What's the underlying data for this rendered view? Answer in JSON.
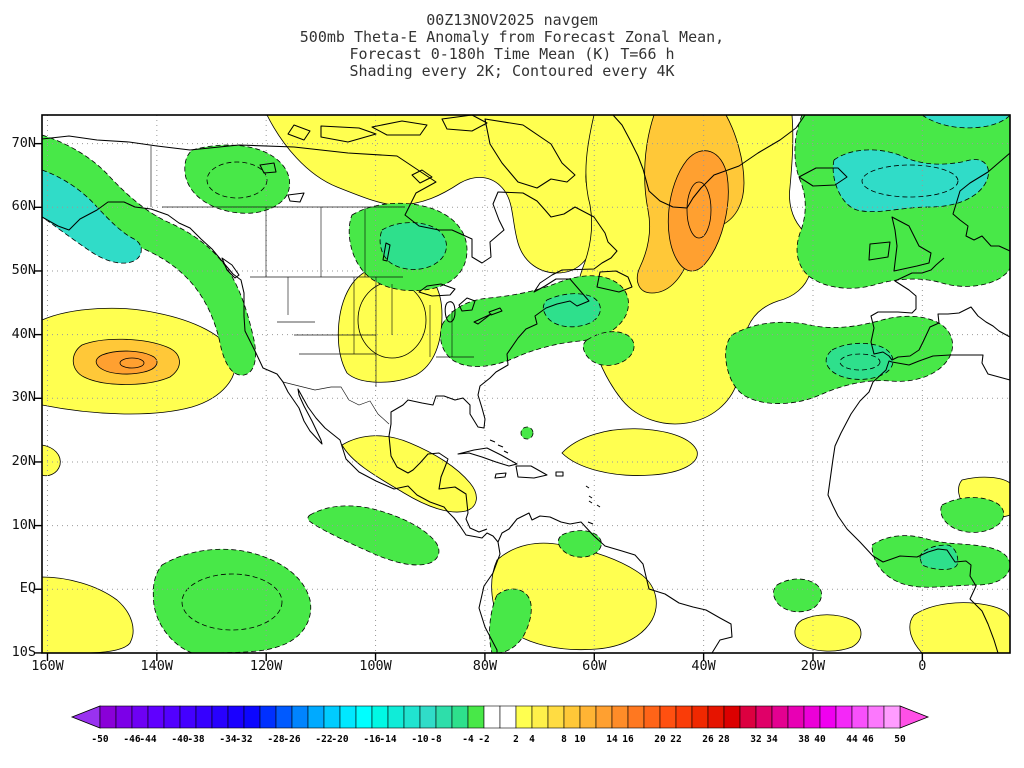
{
  "title": {
    "line1": "00Z13NOV2025 navgem",
    "line2": "500mb Theta-E Anomaly from Forecast Zonal Mean,",
    "line3": "Forecast 0-180h Time Mean (K) T=66 h",
    "line4": "Shading every 2K; Contoured every 4K"
  },
  "axes": {
    "lat_labels": [
      {
        "label": "70N",
        "lat": 70
      },
      {
        "label": "60N",
        "lat": 60
      },
      {
        "label": "50N",
        "lat": 50
      },
      {
        "label": "40N",
        "lat": 40
      },
      {
        "label": "30N",
        "lat": 30
      },
      {
        "label": "20N",
        "lat": 20
      },
      {
        "label": "10N",
        "lat": 10
      },
      {
        "label": "EQ",
        "lat": 0
      },
      {
        "label": "10S",
        "lat": -10
      }
    ],
    "lon_labels": [
      {
        "label": "160W",
        "lon": -160
      },
      {
        "label": "140W",
        "lon": -140
      },
      {
        "label": "120W",
        "lon": -120
      },
      {
        "label": "100W",
        "lon": -100
      },
      {
        "label": "80W",
        "lon": -80
      },
      {
        "label": "60W",
        "lon": -60
      },
      {
        "label": "40W",
        "lon": -40
      },
      {
        "label": "20W",
        "lon": -20
      },
      {
        "label": "0",
        "lon": 0
      }
    ]
  },
  "colorbar": {
    "min": -50,
    "max": 50,
    "step": 2,
    "labeled_values": [
      -50,
      -46,
      -44,
      -40,
      -38,
      -34,
      -32,
      -28,
      -26,
      -22,
      -20,
      -16,
      -14,
      -10,
      -8,
      -4,
      -2,
      2,
      4,
      8,
      10,
      14,
      16,
      20,
      22,
      26,
      28,
      32,
      34,
      38,
      40,
      44,
      46,
      50
    ],
    "left_arrow_color": "#9932F0",
    "right_arrow_color": "#FF50E6",
    "colors": [
      "#8A00D8",
      "#7C00E8",
      "#6E00F4",
      "#6000FF",
      "#5200FF",
      "#4400FF",
      "#3600FF",
      "#2800FF",
      "#1A00FF",
      "#0C06FF",
      "#0030FF",
      "#005AFF",
      "#0084FF",
      "#00AAFF",
      "#00CCFF",
      "#00E8FF",
      "#00FFFF",
      "#00F8E4",
      "#10ECD8",
      "#20E4D0",
      "#30DCC8",
      "#2EDEAA",
      "#2EE08C",
      "#48E848",
      "#FFFFFF",
      "#FFFFFF",
      "#FFFF50",
      "#FFF04A",
      "#FFDC42",
      "#FFC838",
      "#FFB434",
      "#FFA030",
      "#FF8C28",
      "#FF7820",
      "#FF6418",
      "#FF5010",
      "#FA3C08",
      "#F02800",
      "#E61400",
      "#DC0000",
      "#DC0040",
      "#E00068",
      "#E40090",
      "#E800B4",
      "#EC00D8",
      "#F000F0",
      "#F428F8",
      "#F850FB",
      "#FC78FD",
      "#FF9CFF"
    ]
  },
  "map_shades": {
    "yellow": "#FFFF50",
    "orange_light": "#FFC838",
    "orange": "#FFA030",
    "green": "#48E848",
    "spring_green": "#2EE08C",
    "cyan": "#30DCC8"
  },
  "chart_data": {
    "type": "heatmap",
    "subtype": "filled-contour-map",
    "model": "navgem",
    "init_time": "00Z13NOV2025",
    "field": "500mb Theta-E Anomaly from Forecast Zonal Mean",
    "time_mean": "Forecast 0-180h Time Mean (K)",
    "valid": "T=66 h",
    "units": "K",
    "shading_interval_K": 2,
    "contour_interval_K": 4,
    "lat_range": [
      "10S",
      "74N"
    ],
    "lon_range": [
      "160W",
      "16E"
    ],
    "colorbar_range": [
      -50,
      50
    ],
    "anomaly_regions": [
      {
        "sign": "positive",
        "location": "Northeast Pacific near 35N 145W",
        "approx_peak_K": 10
      },
      {
        "sign": "positive",
        "location": "Central North America 35-50N",
        "approx_peak_K": 6
      },
      {
        "sign": "positive",
        "location": "Northern Canada / Greenland / Labrador Sea / North Atlantic",
        "approx_peak_K": 14
      },
      {
        "sign": "positive",
        "location": "Subtropical west Atlantic 18-28N",
        "approx_peak_K": 4
      },
      {
        "sign": "positive",
        "location": "Mexico and Central America",
        "approx_peak_K": 4
      },
      {
        "sign": "positive",
        "location": "Tropical South America / Amazon",
        "approx_peak_K": 4
      },
      {
        "sign": "positive",
        "location": "Gulf of Guinea / tropical south Atlantic",
        "approx_peak_K": 4
      },
      {
        "sign": "negative",
        "location": "Gulf of Alaska / northeast Pacific",
        "approx_peak_K": -10
      },
      {
        "sign": "negative",
        "location": "Northwest and central Canada / Hudson Bay",
        "approx_peak_K": -6
      },
      {
        "sign": "negative",
        "location": "Northeast US / Canadian Maritimes / west Atlantic",
        "approx_peak_K": -6
      },
      {
        "sign": "negative",
        "location": "Iceland / northeast Atlantic / UK",
        "approx_peak_K": -10
      },
      {
        "sign": "negative",
        "location": "Azores / Iberia / Morocco",
        "approx_peak_K": -6
      },
      {
        "sign": "negative",
        "location": "Equatorial central Pacific",
        "approx_peak_K": -4
      },
      {
        "sign": "negative",
        "location": "West Africa / Sahel",
        "approx_peak_K": -4
      }
    ]
  }
}
